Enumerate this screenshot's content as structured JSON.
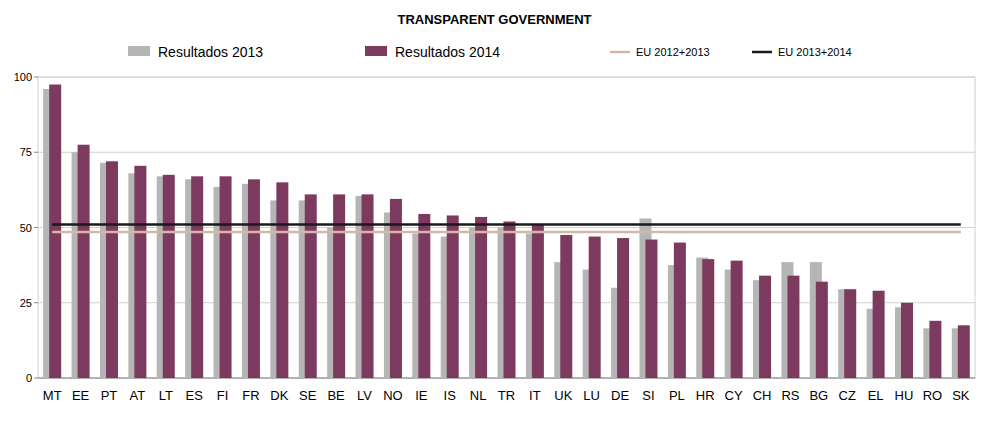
{
  "chart_data": {
    "type": "bar",
    "title": "TRANSPARENT GOVERNMENT",
    "categories": [
      "MT",
      "EE",
      "PT",
      "AT",
      "LT",
      "ES",
      "FI",
      "FR",
      "DK",
      "SE",
      "BE",
      "LV",
      "NO",
      "IE",
      "IS",
      "NL",
      "TR",
      "IT",
      "UK",
      "LU",
      "DE",
      "SI",
      "PL",
      "HR",
      "CY",
      "CH",
      "RS",
      "BG",
      "CZ",
      "EL",
      "HU",
      "RO",
      "SK"
    ],
    "series": [
      {
        "name": "Resultados 2013",
        "color": "#b5b5b5",
        "type": "bar",
        "values": [
          96,
          75,
          71.5,
          68,
          67,
          66,
          63.5,
          64.5,
          59,
          59,
          50,
          60.5,
          55,
          48,
          47,
          50,
          50,
          48,
          38.5,
          36,
          30,
          53,
          37.5,
          40,
          36,
          32.5,
          38.5,
          38.5,
          29.5,
          23,
          23.5,
          16.5,
          16.5
        ]
      },
      {
        "name": "Resultados 2014",
        "color": "#7d3a5f",
        "type": "bar",
        "values": [
          97.5,
          77.5,
          72,
          70.5,
          67.5,
          67,
          67,
          66,
          65,
          61,
          61,
          61,
          59.5,
          54.5,
          54,
          53.5,
          52,
          51,
          47.5,
          47,
          46.5,
          46,
          45,
          39.5,
          39,
          34,
          34,
          32,
          29.5,
          29,
          25,
          19,
          17.5
        ]
      },
      {
        "name": "EU 2012+2013",
        "color": "#d8b6a4",
        "type": "line",
        "values": [
          48.5,
          48.5,
          48.5,
          48.5,
          48.5,
          48.5,
          48.5,
          48.5,
          48.5,
          48.5,
          48.5,
          48.5,
          48.5,
          48.5,
          48.5,
          48.5,
          48.5,
          48.5,
          48.5,
          48.5,
          48.5,
          48.5,
          48.5,
          48.5,
          48.5,
          48.5,
          48.5,
          48.5,
          48.5,
          48.5,
          48.5,
          48.5,
          48.5
        ]
      },
      {
        "name": "EU 2013+2014",
        "color": "#1a1a1a",
        "type": "line",
        "values": [
          51,
          51,
          51,
          51,
          51,
          51,
          51,
          51,
          51,
          51,
          51,
          51,
          51,
          51,
          51,
          51,
          51,
          51,
          51,
          51,
          51,
          51,
          51,
          51,
          51,
          51,
          51,
          51,
          51,
          51,
          51,
          51,
          51
        ]
      }
    ],
    "ylim": [
      0,
      100
    ],
    "yticks": [
      0,
      25,
      50,
      75,
      100
    ],
    "grid": true,
    "legend": "top"
  }
}
